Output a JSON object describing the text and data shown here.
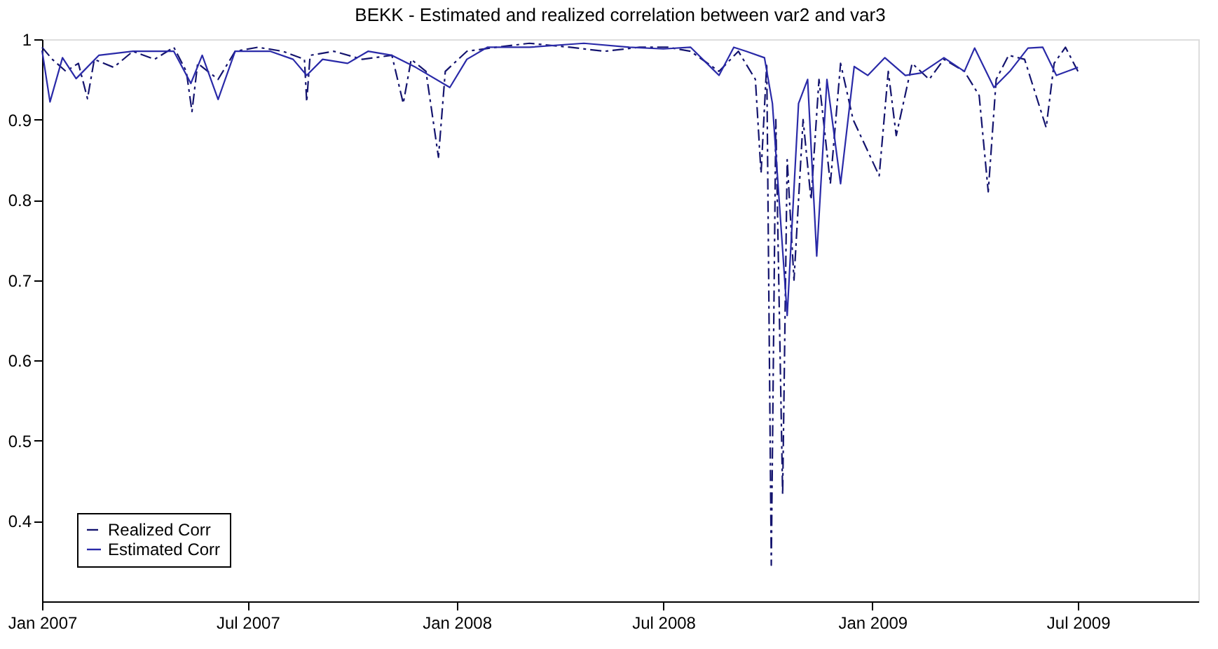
{
  "chart_data": {
    "type": "line",
    "title": "BEKK - Estimated and realized correlation between var2 and var3",
    "xlim": [
      "2007-01-01",
      "2009-10-15"
    ],
    "ylim": [
      0.3,
      1
    ],
    "xticks": [
      {
        "value": "2007-01-01",
        "label": "Jan 2007"
      },
      {
        "value": "2007-07-01",
        "label": "Jul 2007"
      },
      {
        "value": "2008-01-01",
        "label": "Jan 2008"
      },
      {
        "value": "2008-07-01",
        "label": "Jul 2008"
      },
      {
        "value": "2009-01-01",
        "label": "Jan 2009"
      },
      {
        "value": "2009-07-01",
        "label": "Jul 2009"
      }
    ],
    "yticks": [
      0.4,
      0.5,
      0.6,
      0.7,
      0.8,
      0.9,
      1
    ],
    "grid": false,
    "legend": "bottom left",
    "marker": "none",
    "series": [
      {
        "name": "Realized Corr",
        "color": "#14146e",
        "line_style": "dashed",
        "x": [
          "2007-01-01",
          "2007-01-10",
          "2007-01-22",
          "2007-02-02",
          "2007-02-10",
          "2007-02-16",
          "2007-03-05",
          "2007-03-22",
          "2007-04-10",
          "2007-04-27",
          "2007-05-08",
          "2007-05-13",
          "2007-05-18",
          "2007-06-05",
          "2007-06-20",
          "2007-07-10",
          "2007-08-01",
          "2007-08-20",
          "2007-08-22",
          "2007-08-25",
          "2007-09-15",
          "2007-10-10",
          "2007-11-05",
          "2007-11-15",
          "2007-11-22",
          "2007-12-05",
          "2007-12-16",
          "2007-12-22",
          "2008-01-10",
          "2008-02-05",
          "2008-03-05",
          "2008-04-10",
          "2008-05-10",
          "2008-06-10",
          "2008-07-05",
          "2008-07-25",
          "2008-08-19",
          "2008-09-05",
          "2008-09-20",
          "2008-09-25",
          "2008-09-30",
          "2008-10-04",
          "2008-10-08",
          "2008-10-14",
          "2008-10-18",
          "2008-10-24",
          "2008-11-01",
          "2008-11-08",
          "2008-11-15",
          "2008-11-25",
          "2008-12-04",
          "2008-12-15",
          "2009-01-07",
          "2009-01-15",
          "2009-01-22",
          "2009-02-05",
          "2009-02-20",
          "2009-03-05",
          "2009-03-23",
          "2009-04-05",
          "2009-04-13",
          "2009-04-20",
          "2009-05-01",
          "2009-05-15",
          "2009-06-03",
          "2009-06-10",
          "2009-06-20",
          "2009-07-01"
        ],
        "values": [
          0.99,
          0.975,
          0.96,
          0.97,
          0.926,
          0.975,
          0.965,
          0.985,
          0.975,
          0.99,
          0.96,
          0.91,
          0.97,
          0.95,
          0.985,
          0.99,
          0.985,
          0.975,
          0.922,
          0.98,
          0.985,
          0.975,
          0.98,
          0.92,
          0.975,
          0.96,
          0.853,
          0.96,
          0.985,
          0.99,
          0.995,
          0.99,
          0.985,
          0.99,
          0.99,
          0.985,
          0.96,
          0.985,
          0.95,
          0.833,
          0.97,
          0.345,
          0.9,
          0.433,
          0.85,
          0.7,
          0.9,
          0.8,
          0.95,
          0.82,
          0.97,
          0.9,
          0.83,
          0.96,
          0.88,
          0.97,
          0.95,
          0.975,
          0.96,
          0.93,
          0.81,
          0.95,
          0.98,
          0.975,
          0.89,
          0.97,
          0.99,
          0.96
        ]
      },
      {
        "name": "Estimated Corr",
        "color": "#2a2aa8",
        "line_style": "solid",
        "x": [
          "2007-01-01",
          "2007-01-08",
          "2007-01-19",
          "2007-01-31",
          "2007-02-20",
          "2007-03-22",
          "2007-04-27",
          "2007-05-12",
          "2007-05-22",
          "2007-06-05",
          "2007-06-20",
          "2007-07-21",
          "2007-08-10",
          "2007-08-22",
          "2007-09-05",
          "2007-09-27",
          "2007-10-15",
          "2007-11-05",
          "2007-11-26",
          "2007-12-26",
          "2008-01-10",
          "2008-01-28",
          "2008-03-05",
          "2008-04-22",
          "2008-06-01",
          "2008-07-01",
          "2008-07-25",
          "2008-08-19",
          "2008-09-01",
          "2008-09-12",
          "2008-09-28",
          "2008-10-05",
          "2008-10-18",
          "2008-10-28",
          "2008-11-05",
          "2008-11-13",
          "2008-11-22",
          "2008-12-04",
          "2008-12-16",
          "2008-12-28",
          "2009-01-12",
          "2009-01-30",
          "2009-02-13",
          "2009-03-05",
          "2009-03-23",
          "2009-04-01",
          "2009-04-18",
          "2009-05-02",
          "2009-05-18",
          "2009-05-31",
          "2009-06-12",
          "2009-07-01"
        ],
        "values": [
          0.986,
          0.922,
          0.977,
          0.951,
          0.98,
          0.985,
          0.985,
          0.945,
          0.98,
          0.925,
          0.985,
          0.985,
          0.975,
          0.955,
          0.975,
          0.97,
          0.985,
          0.98,
          0.965,
          0.94,
          0.975,
          0.99,
          0.99,
          0.995,
          0.99,
          0.988,
          0.99,
          0.955,
          0.99,
          0.985,
          0.977,
          0.92,
          0.656,
          0.92,
          0.95,
          0.73,
          0.95,
          0.82,
          0.966,
          0.955,
          0.977,
          0.955,
          0.958,
          0.977,
          0.96,
          0.989,
          0.94,
          0.96,
          0.989,
          0.99,
          0.955,
          0.965
        ]
      }
    ]
  }
}
